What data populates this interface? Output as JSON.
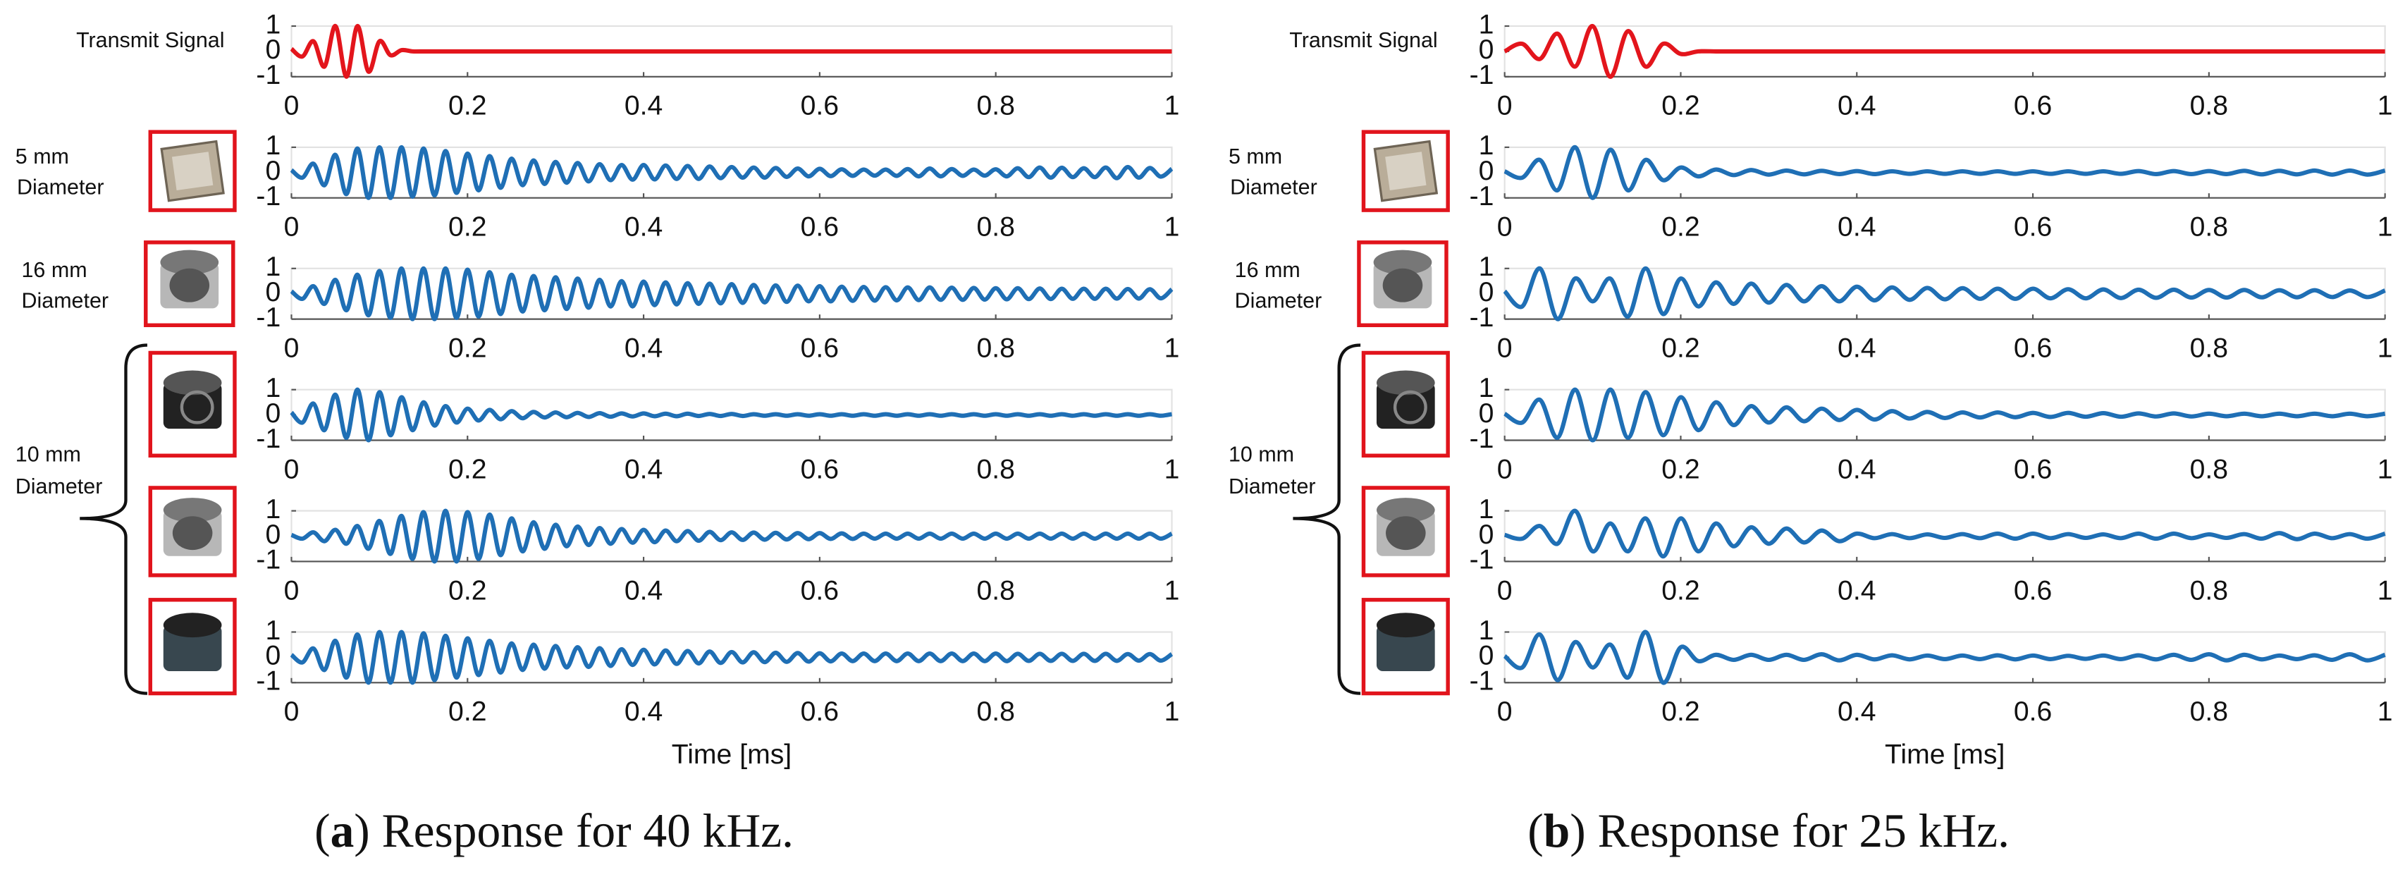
{
  "chart_data": [
    {
      "type": "line",
      "caption": [
        "(",
        "a",
        ") Response for 40 kHz."
      ],
      "xlabel": "Time [ms]",
      "row_labels": [
        [
          "Transmit Signal"
        ],
        [
          "5 mm",
          "Diameter"
        ],
        [
          "16 mm",
          "Diameter"
        ],
        [
          "10 mm",
          "Diameter"
        ]
      ],
      "xlim": [
        0,
        1
      ],
      "xticks": [
        0,
        0.2,
        0.4,
        0.6,
        0.8,
        1
      ],
      "ylim": [
        -1,
        1
      ],
      "yticks": [
        -1,
        0,
        1
      ],
      "x": [
        0,
        0.0125,
        0.025,
        0.0375,
        0.05,
        0.0625,
        0.075,
        0.0875,
        0.1,
        0.1125,
        0.125,
        0.1375,
        0.15,
        0.1625,
        0.175,
        0.1875,
        0.2,
        0.2125,
        0.225,
        0.2375,
        0.25,
        0.2625,
        0.275,
        0.2875,
        0.3,
        0.3125,
        0.325,
        0.3375,
        0.35,
        0.3625,
        0.375,
        0.3875,
        0.4,
        0.4125,
        0.425,
        0.4375,
        0.45,
        0.4625,
        0.475,
        0.4875,
        0.5,
        0.5125,
        0.525,
        0.5375,
        0.55,
        0.5625,
        0.575,
        0.5875,
        0.6,
        0.6125,
        0.625,
        0.6375,
        0.65,
        0.6625,
        0.675,
        0.6875,
        0.7,
        0.7125,
        0.725,
        0.7375,
        0.75,
        0.7625,
        0.775,
        0.7875,
        0.8,
        0.8125,
        0.825,
        0.8375,
        0.85,
        0.8625,
        0.875,
        0.8875,
        0.9,
        0.9125,
        0.925,
        0.9375,
        0.95,
        0.9625,
        0.975,
        0.9875,
        1
      ],
      "series": [
        {
          "color": "#e3151c",
          "values": [
            0.1,
            -0.2,
            0.4,
            -0.6,
            1,
            -1,
            1,
            -0.8,
            0.4,
            -0.15,
            0.05,
            0,
            0,
            0,
            0,
            0,
            0,
            0,
            0,
            0,
            0,
            0,
            0,
            0,
            0,
            0,
            0,
            0,
            0,
            0,
            0,
            0,
            0,
            0,
            0,
            0,
            0,
            0,
            0,
            0,
            0,
            0,
            0,
            0,
            0,
            0,
            0,
            0,
            0,
            0,
            0,
            0,
            0,
            0,
            0,
            0,
            0,
            0,
            0,
            0,
            0,
            0,
            0,
            0,
            0,
            0,
            0,
            0,
            0,
            0,
            0,
            0,
            0,
            0,
            0,
            0,
            0,
            0,
            0,
            0,
            0
          ]
        },
        {
          "color": "#1f6fb5",
          "values": [
            0.1,
            -0.2,
            0.35,
            -0.5,
            0.7,
            -0.85,
            0.95,
            -1,
            1,
            -1,
            1,
            -0.95,
            0.95,
            -0.9,
            0.85,
            -0.8,
            0.75,
            -0.7,
            0.65,
            -0.6,
            0.55,
            -0.5,
            0.48,
            -0.45,
            0.42,
            -0.4,
            0.38,
            -0.35,
            0.33,
            -0.3,
            0.3,
            -0.28,
            0.3,
            -0.27,
            0.28,
            -0.25,
            0.26,
            -0.25,
            0.24,
            -0.22,
            0.22,
            -0.2,
            0.2,
            -0.2,
            0.18,
            -0.17,
            0.16,
            -0.15,
            0.15,
            -0.14,
            0.13,
            -0.13,
            0.12,
            -0.12,
            0.12,
            -0.13,
            0.14,
            -0.15,
            0.16,
            -0.15,
            0.14,
            -0.13,
            0.12,
            -0.12,
            0.13,
            -0.15,
            0.17,
            -0.18,
            0.2,
            -0.2,
            0.19,
            -0.18,
            0.17,
            -0.18,
            0.2,
            -0.22,
            0.22,
            -0.2,
            0.18,
            -0.16,
            0.15
          ]
        },
        {
          "color": "#1f6fb5",
          "values": [
            0.1,
            -0.2,
            0.3,
            -0.4,
            0.55,
            -0.65,
            0.75,
            -0.85,
            0.9,
            -0.95,
            1,
            -1,
            1,
            -1,
            1,
            -0.95,
            0.95,
            -0.9,
            0.85,
            -0.8,
            0.75,
            -0.7,
            0.7,
            -0.65,
            0.65,
            -0.6,
            0.6,
            -0.55,
            0.55,
            -0.5,
            0.5,
            -0.5,
            0.48,
            -0.45,
            0.45,
            -0.42,
            0.42,
            -0.4,
            0.4,
            -0.38,
            0.38,
            -0.36,
            0.35,
            -0.34,
            0.33,
            -0.32,
            0.32,
            -0.3,
            0.3,
            -0.3,
            0.28,
            -0.28,
            0.27,
            -0.27,
            0.26,
            -0.26,
            0.25,
            -0.25,
            0.25,
            -0.24,
            0.24,
            -0.24,
            0.23,
            -0.23,
            0.22,
            -0.22,
            0.22,
            -0.21,
            0.21,
            -0.21,
            0.2,
            -0.2,
            0.2,
            -0.2,
            0.2,
            -0.19,
            0.19,
            -0.19,
            0.18,
            -0.18,
            0.18
          ]
        },
        {
          "color": "#1f6fb5",
          "values": [
            0.1,
            -0.3,
            0.45,
            -0.6,
            0.8,
            -0.9,
            1,
            -1,
            0.9,
            -0.8,
            0.7,
            -0.6,
            0.5,
            -0.42,
            0.35,
            -0.3,
            0.25,
            -0.22,
            0.2,
            -0.17,
            0.15,
            -0.13,
            0.12,
            -0.1,
            0.1,
            -0.09,
            0.08,
            -0.08,
            0.07,
            -0.07,
            0.06,
            -0.06,
            0.06,
            -0.05,
            0.05,
            -0.05,
            0.05,
            -0.04,
            0.04,
            -0.04,
            0.04,
            -0.04,
            0.03,
            -0.03,
            0.03,
            -0.03,
            0.03,
            -0.03,
            0.03,
            -0.03,
            0.03,
            -0.03,
            0.03,
            -0.03,
            0.03,
            -0.03,
            0.03,
            -0.03,
            0.03,
            -0.03,
            0.03,
            -0.03,
            0.03,
            -0.03,
            0.03,
            -0.03,
            0.03,
            -0.03,
            0.03,
            -0.03,
            0.03,
            -0.03,
            0.03,
            -0.03,
            0.03,
            -0.03,
            0.03,
            -0.03,
            0.03,
            -0.03,
            0.03
          ]
        },
        {
          "color": "#1f6fb5",
          "values": [
            0.05,
            -0.1,
            0.15,
            -0.2,
            0.25,
            -0.3,
            0.4,
            -0.5,
            0.6,
            -0.7,
            0.8,
            -0.9,
            0.95,
            -1,
            1,
            -1,
            0.95,
            -0.9,
            0.85,
            -0.75,
            0.7,
            -0.6,
            0.55,
            -0.5,
            0.45,
            -0.4,
            0.38,
            -0.35,
            0.32,
            -0.3,
            0.28,
            -0.26,
            0.25,
            -0.24,
            0.22,
            -0.2,
            0.2,
            -0.18,
            0.17,
            -0.16,
            0.15,
            -0.15,
            0.14,
            -0.14,
            0.13,
            -0.13,
            0.12,
            -0.12,
            0.12,
            -0.11,
            0.11,
            -0.11,
            0.1,
            -0.1,
            0.1,
            -0.1,
            0.1,
            -0.1,
            0.1,
            -0.1,
            0.1,
            -0.1,
            0.1,
            -0.1,
            0.1,
            -0.1,
            0.1,
            -0.1,
            0.1,
            -0.1,
            0.1,
            -0.1,
            0.1,
            -0.1,
            0.1,
            -0.1,
            0.1,
            -0.1,
            0.1,
            -0.1,
            0.1
          ]
        },
        {
          "color": "#1f6fb5",
          "values": [
            0.1,
            -0.2,
            0.35,
            -0.5,
            0.65,
            -0.8,
            0.9,
            -1,
            1,
            -1,
            1,
            -1,
            0.95,
            -0.9,
            0.85,
            -0.8,
            0.75,
            -0.7,
            0.65,
            -0.6,
            0.55,
            -0.5,
            0.5,
            -0.45,
            0.45,
            -0.4,
            0.4,
            -0.38,
            0.36,
            -0.34,
            0.32,
            -0.3,
            0.3,
            -0.28,
            0.27,
            -0.26,
            0.25,
            -0.24,
            0.23,
            -0.22,
            0.21,
            -0.2,
            0.2,
            -0.19,
            0.18,
            -0.18,
            0.17,
            -0.17,
            0.16,
            -0.16,
            0.15,
            -0.15,
            0.15,
            -0.15,
            0.15,
            -0.15,
            0.15,
            -0.15,
            0.15,
            -0.15,
            0.15,
            -0.15,
            0.15,
            -0.15,
            0.15,
            -0.15,
            0.14,
            -0.14,
            0.14,
            -0.14,
            0.14,
            -0.14,
            0.14,
            -0.14,
            0.14,
            -0.14,
            0.13,
            -0.13,
            0.13,
            -0.13,
            0.13
          ]
        }
      ]
    },
    {
      "type": "line",
      "caption": [
        "(",
        "b",
        ") Response for 25 kHz."
      ],
      "xlabel": "Time [ms]",
      "row_labels": [
        [
          "Transmit Signal"
        ],
        [
          "5 mm",
          "Diameter"
        ],
        [
          "16 mm",
          "Diameter"
        ],
        [
          "10 mm",
          "Diameter"
        ]
      ],
      "xlim": [
        0,
        1
      ],
      "xticks": [
        0,
        0.2,
        0.4,
        0.6,
        0.8,
        1
      ],
      "ylim": [
        -1,
        1
      ],
      "yticks": [
        -1,
        0,
        1
      ],
      "x": [
        0,
        0.02,
        0.04,
        0.06,
        0.08,
        0.1,
        0.12,
        0.14,
        0.16,
        0.18,
        0.2,
        0.22,
        0.24,
        0.26,
        0.28,
        0.3,
        0.32,
        0.34,
        0.36,
        0.38,
        0.4,
        0.42,
        0.44,
        0.46,
        0.48,
        0.5,
        0.52,
        0.54,
        0.56,
        0.58,
        0.6,
        0.62,
        0.64,
        0.66,
        0.68,
        0.7,
        0.72,
        0.74,
        0.76,
        0.78,
        0.8,
        0.82,
        0.84,
        0.86,
        0.88,
        0.9,
        0.92,
        0.94,
        0.96,
        0.98,
        1
      ],
      "series": [
        {
          "color": "#e3151c",
          "values": [
            0,
            0.3,
            -0.3,
            0.7,
            -0.6,
            1,
            -1,
            0.8,
            -0.6,
            0.3,
            -0.1,
            0,
            0,
            0,
            0,
            0,
            0,
            0,
            0,
            0,
            0,
            0,
            0,
            0,
            0,
            0,
            0,
            0,
            0,
            0,
            0,
            0,
            0,
            0,
            0,
            0,
            0,
            0,
            0,
            0,
            0,
            0,
            0,
            0,
            0,
            0,
            0,
            0,
            0,
            0,
            0
          ]
        },
        {
          "color": "#1f6fb5",
          "values": [
            0.05,
            -0.2,
            0.5,
            -0.7,
            1,
            -1,
            0.9,
            -0.7,
            0.5,
            -0.3,
            0.2,
            -0.15,
            0.12,
            -0.1,
            0.1,
            -0.08,
            0.08,
            -0.07,
            0.07,
            -0.06,
            0.06,
            -0.06,
            0.05,
            -0.05,
            0.05,
            -0.05,
            0.05,
            -0.05,
            0.05,
            -0.05,
            0.05,
            -0.05,
            0.05,
            -0.05,
            0.05,
            -0.05,
            0.06,
            -0.06,
            0.06,
            -0.06,
            0.06,
            -0.06,
            0.07,
            -0.07,
            0.07,
            -0.07,
            0.08,
            -0.08,
            0.08,
            -0.08,
            0.08
          ]
        },
        {
          "color": "#1f6fb5",
          "values": [
            0.1,
            -0.5,
            1,
            -1,
            0.6,
            -0.3,
            0.6,
            -0.9,
            1,
            -0.8,
            0.6,
            -0.5,
            0.45,
            -0.4,
            0.4,
            -0.35,
            0.35,
            -0.3,
            0.3,
            -0.3,
            0.28,
            -0.26,
            0.25,
            -0.24,
            0.23,
            -0.22,
            0.22,
            -0.2,
            0.2,
            -0.2,
            0.2,
            -0.18,
            0.18,
            -0.18,
            0.17,
            -0.17,
            0.16,
            -0.16,
            0.16,
            -0.15,
            0.15,
            -0.15,
            0.15,
            -0.14,
            0.14,
            -0.14,
            0.14,
            -0.13,
            0.13,
            -0.13,
            0.13
          ]
        },
        {
          "color": "#1f6fb5",
          "values": [
            0.05,
            -0.3,
            0.6,
            -0.9,
            1,
            -1,
            1,
            -0.9,
            0.9,
            -0.8,
            0.7,
            -0.6,
            0.5,
            -0.4,
            0.35,
            -0.3,
            0.3,
            -0.25,
            0.25,
            -0.2,
            0.2,
            -0.18,
            0.15,
            -0.14,
            0.12,
            -0.12,
            0.1,
            -0.1,
            0.1,
            -0.09,
            0.08,
            -0.08,
            0.08,
            -0.07,
            0.07,
            -0.07,
            0.06,
            -0.06,
            0.06,
            -0.06,
            0.05,
            -0.05,
            0.05,
            -0.05,
            0.05,
            -0.05,
            0.05,
            -0.05,
            0.05,
            -0.05,
            0.05
          ]
        },
        {
          "color": "#1f6fb5",
          "values": [
            0.05,
            -0.1,
            0.4,
            -0.3,
            1,
            -0.6,
            0.5,
            -0.6,
            0.7,
            -0.8,
            0.7,
            -0.6,
            0.5,
            -0.4,
            0.35,
            -0.3,
            0.3,
            -0.25,
            0.22,
            -0.2,
            0.1,
            -0.08,
            0.08,
            -0.08,
            0.07,
            -0.07,
            0.08,
            -0.08,
            0.1,
            -0.1,
            0.1,
            -0.08,
            0.08,
            -0.07,
            0.07,
            -0.08,
            0.1,
            -0.1,
            0.1,
            -0.08,
            0.07,
            -0.07,
            0.08,
            -0.1,
            0.12,
            -0.12,
            0.1,
            -0.08,
            0.08,
            -0.1,
            0.1
          ]
        },
        {
          "color": "#1f6fb5",
          "values": [
            0.05,
            -0.4,
            0.9,
            -0.9,
            0.6,
            -0.4,
            0.5,
            -0.8,
            1,
            -1,
            0.4,
            -0.15,
            0.1,
            -0.1,
            0.1,
            -0.1,
            0.1,
            -0.1,
            0.12,
            -0.12,
            0.1,
            -0.08,
            0.08,
            -0.08,
            0.07,
            -0.07,
            0.07,
            -0.07,
            0.08,
            -0.08,
            0.07,
            -0.07,
            0.06,
            -0.06,
            0.07,
            -0.07,
            0.08,
            -0.08,
            0.1,
            -0.1,
            0.12,
            -0.12,
            0.1,
            -0.08,
            0.07,
            -0.07,
            0.08,
            -0.1,
            0.12,
            -0.12,
            0.1
          ]
        }
      ]
    }
  ]
}
